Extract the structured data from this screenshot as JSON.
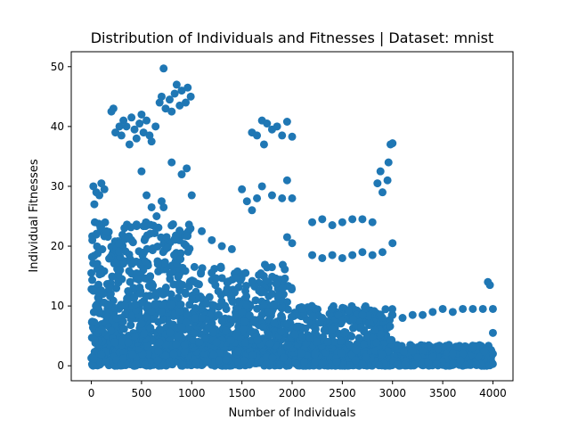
{
  "chart_data": {
    "type": "scatter",
    "title": "Distribution of Individuals and Fitnesses | Dataset: mnist",
    "xlabel": "Number of Individuals",
    "ylabel": "Individual Fitnesses",
    "xlim": [
      -200,
      4200
    ],
    "ylim": [
      -2.5,
      52.5
    ],
    "x_ticks": [
      0,
      500,
      1000,
      1500,
      2000,
      2500,
      3000,
      3500,
      4000
    ],
    "y_ticks": [
      0,
      10,
      20,
      30,
      40,
      50
    ],
    "marker_color": "#1f77b4",
    "grid": false,
    "legend": "none",
    "points_sample": [
      [
        0,
        15.5
      ],
      [
        10,
        21
      ],
      [
        20,
        30
      ],
      [
        30,
        27
      ],
      [
        50,
        29
      ],
      [
        80,
        28.5
      ],
      [
        100,
        30.5
      ],
      [
        130,
        29.5
      ],
      [
        150,
        22.5
      ],
      [
        200,
        42.5
      ],
      [
        220,
        43
      ],
      [
        240,
        39
      ],
      [
        280,
        40
      ],
      [
        300,
        38.5
      ],
      [
        320,
        41
      ],
      [
        350,
        40
      ],
      [
        380,
        37
      ],
      [
        400,
        41.5
      ],
      [
        430,
        39.5
      ],
      [
        450,
        38
      ],
      [
        480,
        40.5
      ],
      [
        500,
        42
      ],
      [
        520,
        39
      ],
      [
        550,
        41
      ],
      [
        580,
        38.5
      ],
      [
        600,
        37.5
      ],
      [
        640,
        40
      ],
      [
        680,
        44
      ],
      [
        700,
        45
      ],
      [
        720,
        49.7
      ],
      [
        740,
        43
      ],
      [
        780,
        44.5
      ],
      [
        800,
        42.5
      ],
      [
        830,
        45.5
      ],
      [
        850,
        47
      ],
      [
        880,
        43.5
      ],
      [
        900,
        46
      ],
      [
        940,
        44
      ],
      [
        960,
        46.5
      ],
      [
        990,
        45
      ],
      [
        500,
        32.5
      ],
      [
        550,
        28.5
      ],
      [
        600,
        26.5
      ],
      [
        650,
        25
      ],
      [
        700,
        27.5
      ],
      [
        720,
        26.5
      ],
      [
        800,
        34
      ],
      [
        900,
        32
      ],
      [
        950,
        33
      ],
      [
        1000,
        28.5
      ],
      [
        1100,
        22.5
      ],
      [
        1200,
        21
      ],
      [
        1300,
        20
      ],
      [
        1400,
        19.5
      ],
      [
        1500,
        29.5
      ],
      [
        1550,
        27.5
      ],
      [
        1600,
        26
      ],
      [
        1650,
        28
      ],
      [
        1600,
        39
      ],
      [
        1650,
        38.5
      ],
      [
        1700,
        41
      ],
      [
        1720,
        37
      ],
      [
        1750,
        40.5
      ],
      [
        1800,
        39.5
      ],
      [
        1850,
        40
      ],
      [
        1900,
        38.5
      ],
      [
        1950,
        40.8
      ],
      [
        2000,
        38.3
      ],
      [
        1700,
        30
      ],
      [
        1800,
        28.5
      ],
      [
        1900,
        28
      ],
      [
        1950,
        31
      ],
      [
        2000,
        28
      ],
      [
        1950,
        21.5
      ],
      [
        2000,
        20.5
      ],
      [
        2200,
        24
      ],
      [
        2300,
        24.5
      ],
      [
        2400,
        23.5
      ],
      [
        2500,
        24
      ],
      [
        2600,
        24.5
      ],
      [
        2700,
        24.5
      ],
      [
        2800,
        24
      ],
      [
        2200,
        18.5
      ],
      [
        2300,
        18
      ],
      [
        2400,
        18.5
      ],
      [
        2500,
        18
      ],
      [
        2600,
        18.5
      ],
      [
        2700,
        19
      ],
      [
        2800,
        18.5
      ],
      [
        2900,
        19
      ],
      [
        2850,
        30.5
      ],
      [
        2880,
        32.5
      ],
      [
        2900,
        29
      ],
      [
        2950,
        31
      ],
      [
        2980,
        37
      ],
      [
        3000,
        37.2
      ],
      [
        2960,
        34
      ],
      [
        3000,
        20.5
      ],
      [
        3000,
        8.5
      ],
      [
        3100,
        8
      ],
      [
        3200,
        8.5
      ],
      [
        3300,
        8.5
      ],
      [
        3400,
        9
      ],
      [
        3500,
        9.5
      ],
      [
        3600,
        9
      ],
      [
        3700,
        9.5
      ],
      [
        3800,
        9.5
      ],
      [
        3900,
        9.5
      ],
      [
        4000,
        9.5
      ],
      [
        3950,
        14
      ],
      [
        3970,
        13.5
      ],
      [
        4000,
        5.5
      ],
      [
        4000,
        2
      ],
      [
        3800,
        3
      ],
      [
        3600,
        2
      ],
      [
        3400,
        1.5
      ],
      [
        3200,
        2.5
      ],
      [
        100,
        6
      ],
      [
        300,
        8
      ],
      [
        500,
        7
      ],
      [
        700,
        9
      ],
      [
        900,
        6.5
      ],
      [
        1100,
        8
      ],
      [
        1300,
        7.5
      ],
      [
        1500,
        9
      ],
      [
        1700,
        8.5
      ],
      [
        1900,
        8
      ],
      [
        2100,
        9.5
      ],
      [
        2300,
        8
      ],
      [
        2500,
        7.5
      ],
      [
        2700,
        8.5
      ],
      [
        2900,
        8
      ]
    ],
    "density_bands": [
      {
        "x": [
          0,
          4000
        ],
        "y": [
          0,
          3.5
        ]
      },
      {
        "x": [
          0,
          3000
        ],
        "y": [
          3.5,
          10
        ]
      },
      {
        "x": [
          0,
          2000
        ],
        "y": [
          10,
          17
        ]
      },
      {
        "x": [
          0,
          1000
        ],
        "y": [
          17,
          24
        ]
      }
    ]
  }
}
